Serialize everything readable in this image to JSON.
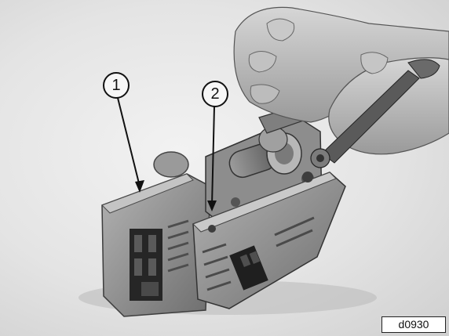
{
  "callouts": [
    {
      "label": "1"
    },
    {
      "label": "2"
    }
  ],
  "figure_id": "d0930",
  "colors": {
    "background": "#e6e6e6",
    "metal_dark": "#6f6f6f",
    "metal_light": "#a9a9a9",
    "skin": "#bdbdbd"
  }
}
